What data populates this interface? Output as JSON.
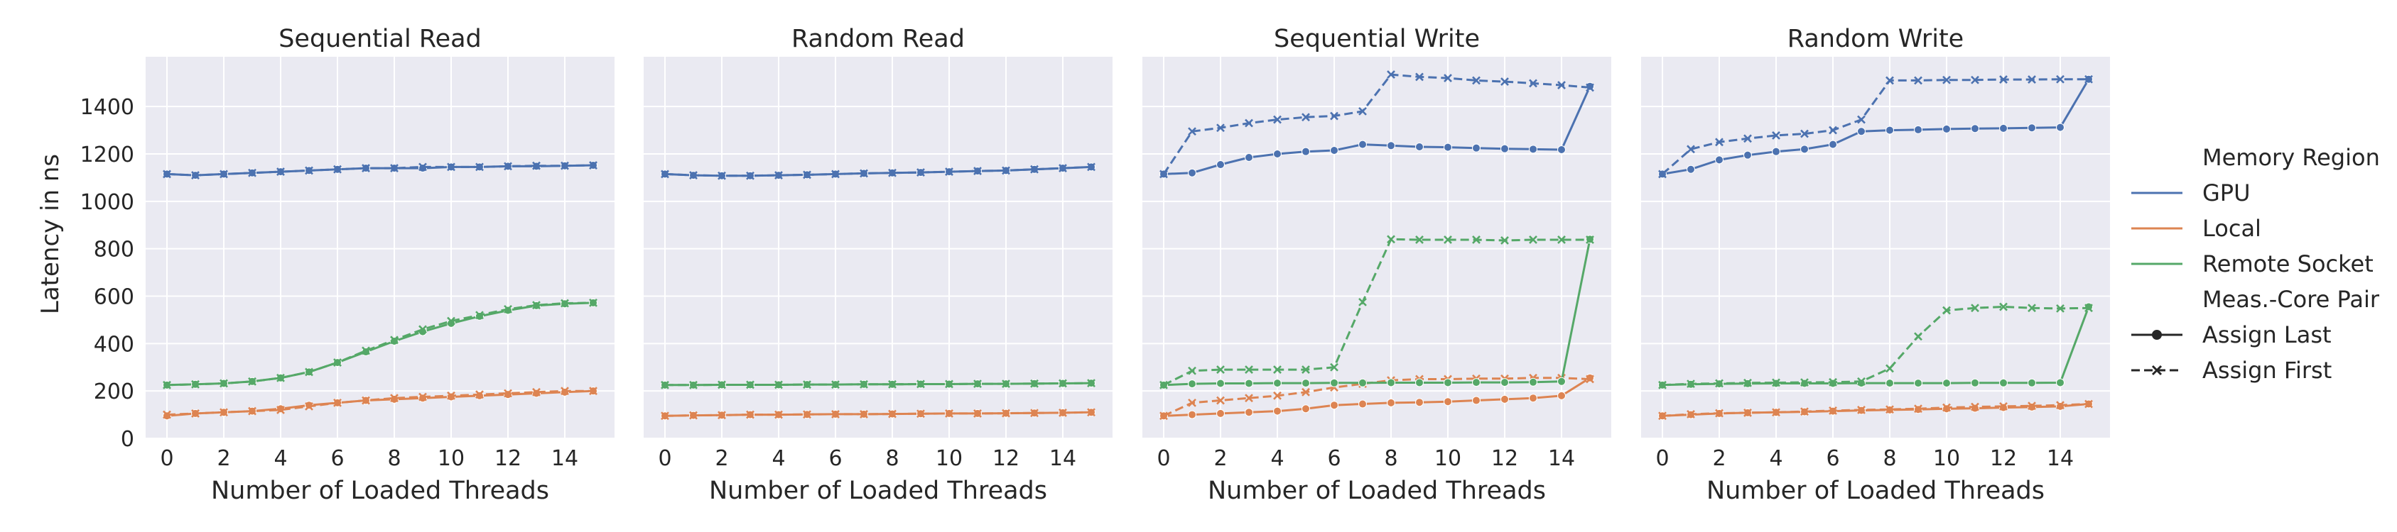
{
  "figure": {
    "ylabel": "Latency in ns",
    "legend": {
      "placement": "right",
      "hue_title": "Memory Region",
      "hue_entries": [
        {
          "name": "GPU",
          "color": "#4c72b0"
        },
        {
          "name": "Local",
          "color": "#dd8452"
        },
        {
          "name": "Remote Socket",
          "color": "#55a868"
        }
      ],
      "style_title": "Meas.-Core Pair",
      "style_entries": [
        {
          "name": "Assign Last",
          "dash": "solid",
          "marker": "circle"
        },
        {
          "name": "Assign First",
          "dash": "dashed",
          "marker": "x"
        }
      ]
    }
  },
  "chart_data": [
    {
      "type": "line",
      "title": "Sequential Read",
      "xlabel": "Number of Loaded Threads",
      "ylabel": "Latency in ns",
      "x": [
        0,
        1,
        2,
        3,
        4,
        5,
        6,
        7,
        8,
        9,
        10,
        11,
        12,
        13,
        14,
        15
      ],
      "xticks": [
        0,
        2,
        4,
        6,
        8,
        10,
        12,
        14
      ],
      "yticks": [
        0,
        200,
        400,
        600,
        800,
        1000,
        1200,
        1400
      ],
      "xlim": [
        -0.75,
        15.75
      ],
      "ylim": [
        0,
        1610
      ],
      "grid": true,
      "series": [
        {
          "region": "GPU",
          "pair": "Assign Last",
          "values": [
            1115,
            1110,
            1115,
            1120,
            1125,
            1130,
            1135,
            1140,
            1140,
            1140,
            1145,
            1145,
            1148,
            1148,
            1150,
            1152
          ]
        },
        {
          "region": "GPU",
          "pair": "Assign First",
          "values": [
            1115,
            1110,
            1115,
            1120,
            1125,
            1130,
            1135,
            1140,
            1140,
            1145,
            1145,
            1145,
            1148,
            1150,
            1150,
            1152
          ]
        },
        {
          "region": "Local",
          "pair": "Assign Last",
          "values": [
            95,
            105,
            110,
            115,
            125,
            140,
            150,
            160,
            165,
            170,
            175,
            180,
            185,
            190,
            195,
            200
          ]
        },
        {
          "region": "Local",
          "pair": "Assign First",
          "values": [
            100,
            105,
            110,
            115,
            120,
            135,
            150,
            160,
            170,
            175,
            180,
            185,
            190,
            195,
            200,
            200
          ]
        },
        {
          "region": "Remote Socket",
          "pair": "Assign Last",
          "values": [
            225,
            228,
            232,
            240,
            255,
            280,
            320,
            365,
            410,
            450,
            485,
            515,
            540,
            560,
            568,
            572
          ]
        },
        {
          "region": "Remote Socket",
          "pair": "Assign First",
          "values": [
            225,
            228,
            232,
            240,
            255,
            280,
            320,
            370,
            415,
            460,
            495,
            520,
            545,
            562,
            570,
            572
          ]
        }
      ]
    },
    {
      "type": "line",
      "title": "Random Read",
      "xlabel": "Number of Loaded Threads",
      "ylabel": "",
      "x": [
        0,
        1,
        2,
        3,
        4,
        5,
        6,
        7,
        8,
        9,
        10,
        11,
        12,
        13,
        14,
        15
      ],
      "xticks": [
        0,
        2,
        4,
        6,
        8,
        10,
        12,
        14
      ],
      "yticks": [
        0,
        200,
        400,
        600,
        800,
        1000,
        1200,
        1400
      ],
      "xlim": [
        -0.75,
        15.75
      ],
      "ylim": [
        0,
        1610
      ],
      "grid": true,
      "series": [
        {
          "region": "GPU",
          "pair": "Assign Last",
          "values": [
            1115,
            1110,
            1108,
            1108,
            1110,
            1112,
            1115,
            1118,
            1120,
            1122,
            1125,
            1128,
            1130,
            1135,
            1140,
            1145
          ]
        },
        {
          "region": "GPU",
          "pair": "Assign First",
          "values": [
            1115,
            1110,
            1108,
            1108,
            1110,
            1112,
            1115,
            1118,
            1120,
            1122,
            1125,
            1128,
            1130,
            1135,
            1140,
            1145
          ]
        },
        {
          "region": "Local",
          "pair": "Assign Last",
          "values": [
            95,
            97,
            98,
            100,
            100,
            101,
            102,
            102,
            103,
            104,
            105,
            105,
            106,
            107,
            108,
            110
          ]
        },
        {
          "region": "Local",
          "pair": "Assign First",
          "values": [
            95,
            97,
            98,
            100,
            100,
            101,
            102,
            102,
            103,
            104,
            105,
            105,
            106,
            107,
            108,
            110
          ]
        },
        {
          "region": "Remote Socket",
          "pair": "Assign Last",
          "values": [
            225,
            225,
            226,
            226,
            226,
            227,
            227,
            228,
            228,
            229,
            229,
            230,
            230,
            231,
            232,
            233
          ]
        },
        {
          "region": "Remote Socket",
          "pair": "Assign First",
          "values": [
            225,
            225,
            226,
            226,
            226,
            227,
            227,
            228,
            228,
            229,
            229,
            230,
            230,
            231,
            232,
            233
          ]
        }
      ]
    },
    {
      "type": "line",
      "title": "Sequential Write",
      "xlabel": "Number of Loaded Threads",
      "ylabel": "",
      "x": [
        0,
        1,
        2,
        3,
        4,
        5,
        6,
        7,
        8,
        9,
        10,
        11,
        12,
        13,
        14,
        15
      ],
      "xticks": [
        0,
        2,
        4,
        6,
        8,
        10,
        12,
        14
      ],
      "yticks": [
        0,
        200,
        400,
        600,
        800,
        1000,
        1200,
        1400
      ],
      "xlim": [
        -0.75,
        15.75
      ],
      "ylim": [
        0,
        1610
      ],
      "grid": true,
      "series": [
        {
          "region": "GPU",
          "pair": "Assign Last",
          "values": [
            1115,
            1120,
            1155,
            1185,
            1200,
            1210,
            1215,
            1240,
            1235,
            1230,
            1228,
            1225,
            1222,
            1220,
            1218,
            1485
          ]
        },
        {
          "region": "GPU",
          "pair": "Assign First",
          "values": [
            1115,
            1295,
            1310,
            1330,
            1345,
            1355,
            1360,
            1380,
            1535,
            1525,
            1520,
            1510,
            1505,
            1498,
            1490,
            1480
          ]
        },
        {
          "region": "Local",
          "pair": "Assign Last",
          "values": [
            95,
            100,
            105,
            110,
            115,
            125,
            140,
            145,
            150,
            152,
            155,
            160,
            165,
            170,
            180,
            255
          ]
        },
        {
          "region": "Local",
          "pair": "Assign First",
          "values": [
            95,
            150,
            160,
            170,
            180,
            195,
            215,
            230,
            245,
            250,
            250,
            252,
            252,
            255,
            255,
            250
          ]
        },
        {
          "region": "Remote Socket",
          "pair": "Assign Last",
          "values": [
            225,
            230,
            232,
            232,
            233,
            233,
            234,
            234,
            235,
            235,
            235,
            236,
            236,
            237,
            240,
            840
          ]
        },
        {
          "region": "Remote Socket",
          "pair": "Assign First",
          "values": [
            225,
            285,
            290,
            290,
            290,
            290,
            300,
            575,
            840,
            838,
            838,
            838,
            835,
            838,
            838,
            838
          ]
        }
      ]
    },
    {
      "type": "line",
      "title": "Random Write",
      "xlabel": "Number of Loaded Threads",
      "ylabel": "",
      "x": [
        0,
        1,
        2,
        3,
        4,
        5,
        6,
        7,
        8,
        9,
        10,
        11,
        12,
        13,
        14,
        15
      ],
      "xticks": [
        0,
        2,
        4,
        6,
        8,
        10,
        12,
        14
      ],
      "yticks": [
        0,
        200,
        400,
        600,
        800,
        1000,
        1200,
        1400
      ],
      "xlim": [
        -0.75,
        15.75
      ],
      "ylim": [
        0,
        1610
      ],
      "grid": true,
      "series": [
        {
          "region": "GPU",
          "pair": "Assign Last",
          "values": [
            1115,
            1135,
            1175,
            1195,
            1210,
            1220,
            1240,
            1295,
            1300,
            1302,
            1305,
            1307,
            1308,
            1310,
            1312,
            1515
          ]
        },
        {
          "region": "GPU",
          "pair": "Assign First",
          "values": [
            1115,
            1220,
            1250,
            1265,
            1278,
            1285,
            1300,
            1345,
            1510,
            1510,
            1512,
            1512,
            1514,
            1514,
            1515,
            1515
          ]
        },
        {
          "region": "Local",
          "pair": "Assign Last",
          "values": [
            95,
            100,
            105,
            108,
            110,
            112,
            115,
            118,
            120,
            122,
            125,
            127,
            130,
            132,
            135,
            145
          ]
        },
        {
          "region": "Local",
          "pair": "Assign First",
          "values": [
            95,
            102,
            106,
            108,
            110,
            113,
            117,
            120,
            122,
            125,
            130,
            133,
            135,
            137,
            140,
            145
          ]
        },
        {
          "region": "Remote Socket",
          "pair": "Assign Last",
          "values": [
            225,
            228,
            230,
            231,
            232,
            232,
            232,
            233,
            233,
            233,
            233,
            234,
            234,
            234,
            235,
            555
          ]
        },
        {
          "region": "Remote Socket",
          "pair": "Assign First",
          "values": [
            225,
            230,
            232,
            234,
            235,
            236,
            237,
            240,
            295,
            430,
            540,
            550,
            555,
            550,
            548,
            550
          ]
        }
      ]
    }
  ]
}
